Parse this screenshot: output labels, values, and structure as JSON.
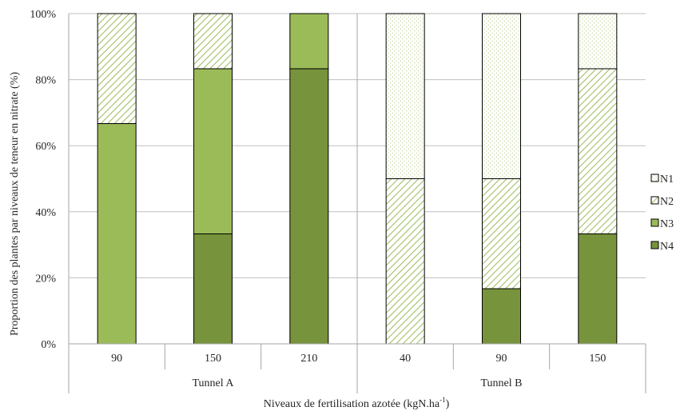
{
  "chart_data": {
    "type": "bar",
    "stacked": true,
    "percent": true,
    "groups": [
      {
        "name": "Tunnel A",
        "categories": [
          "90",
          "150",
          "210"
        ]
      },
      {
        "name": "Tunnel B",
        "categories": [
          "40",
          "90",
          "150"
        ]
      }
    ],
    "categories": [
      "90",
      "150",
      "210",
      "40",
      "90",
      "150"
    ],
    "series": [
      {
        "name": "N4",
        "pattern": "solid-dark",
        "values": [
          0,
          33.3,
          83.3,
          0,
          16.7,
          33.3
        ]
      },
      {
        "name": "N3",
        "pattern": "solid-light",
        "values": [
          66.7,
          50,
          16.7,
          0,
          0,
          0
        ]
      },
      {
        "name": "N2",
        "pattern": "diagonal-hatch",
        "values": [
          33.3,
          16.7,
          0,
          50,
          33.3,
          50
        ]
      },
      {
        "name": "N1",
        "pattern": "dots",
        "values": [
          0,
          0,
          0,
          50,
          50,
          16.7
        ]
      }
    ],
    "legend_order": [
      "N1",
      "N2",
      "N3",
      "N4"
    ],
    "legend_position": "right",
    "yticks": [
      "0%",
      "20%",
      "40%",
      "60%",
      "80%",
      "100%"
    ],
    "ylim": [
      0,
      100
    ],
    "grid": true,
    "ylabel": "Proportion des plantes par niveaux de teneur en nitrate (%)",
    "xlabel": "Niveaux de fertilisation azotée (kgN.ha",
    "xlabel_superscript": "-1",
    "xlabel_suffix": ")",
    "colors": {
      "N4": "#77933c",
      "N3": "#9bbb59",
      "N2_hatch": "#9bbb59",
      "N1_dots": "#c3d69b",
      "border": "#000000",
      "grid": "#bfbfbf",
      "axis": "#a6a6a6"
    }
  }
}
